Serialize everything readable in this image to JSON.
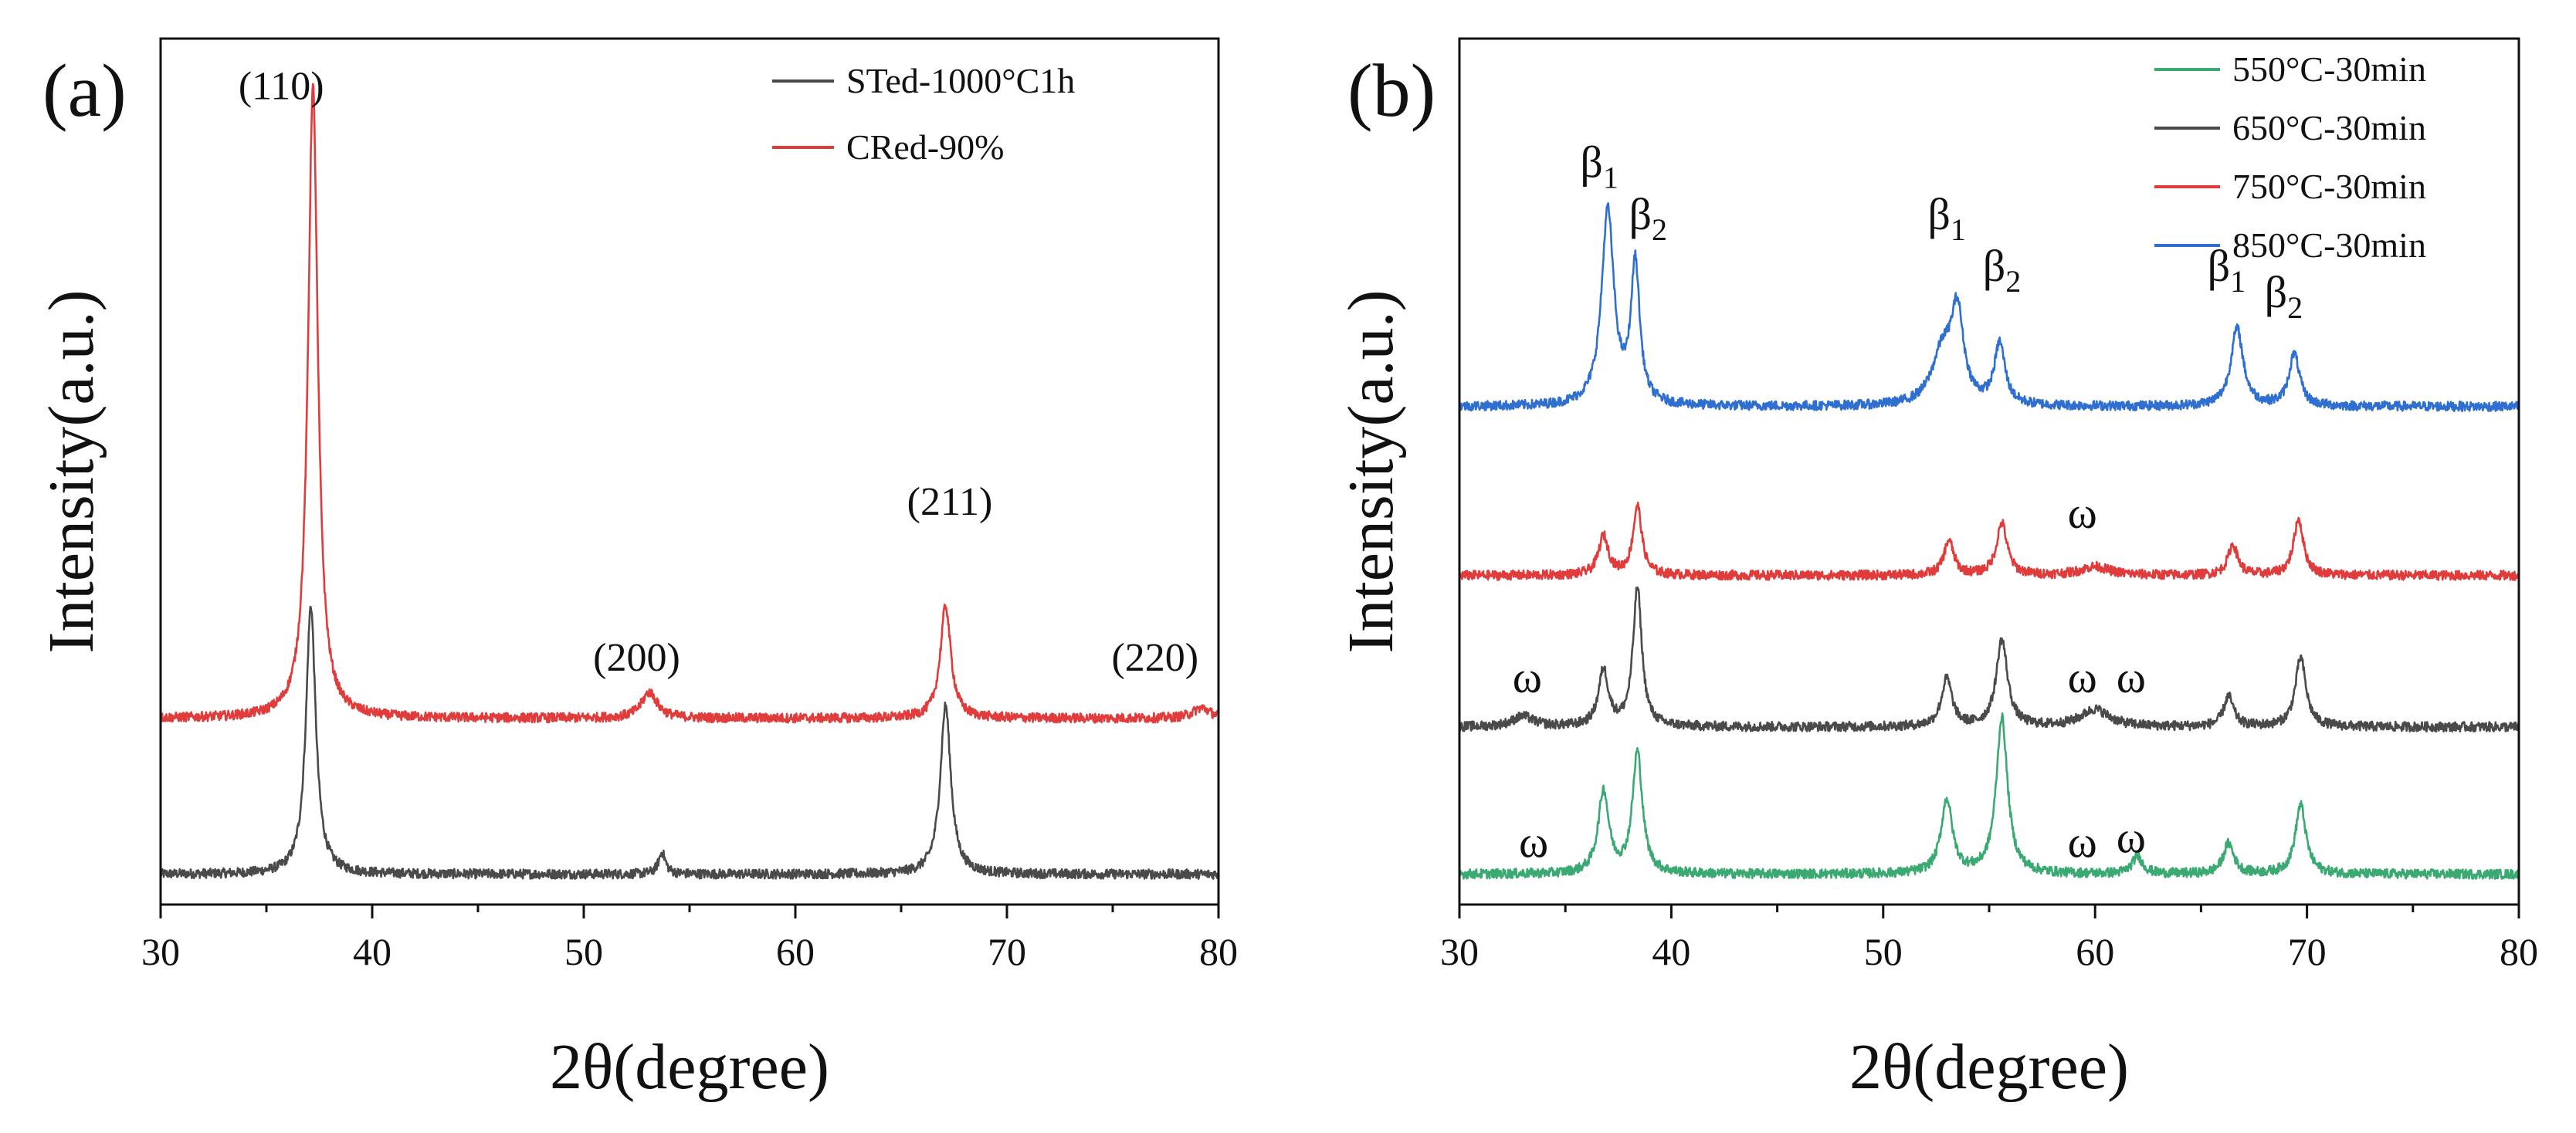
{
  "chart_data": [
    {
      "type": "line",
      "panel": "(a)",
      "xlabel": "2θ(degree)",
      "ylabel": "Intensity(a.u.)",
      "xlim": [
        30,
        80
      ],
      "xticks": [
        30,
        40,
        50,
        60,
        70,
        80
      ],
      "ylim": [
        0,
        1
      ],
      "legend": "top-right",
      "series": [
        {
          "name": "STed-1000°C1h",
          "color": "#4a4a4a",
          "baseline": 0.035,
          "peaks": [
            {
              "x": 37.1,
              "h": 0.31,
              "w": 0.28
            },
            {
              "x": 53.7,
              "h": 0.025,
              "w": 0.2
            },
            {
              "x": 67.1,
              "h": 0.195,
              "w": 0.3
            }
          ]
        },
        {
          "name": "CRed-90%",
          "color": "#e03c3c",
          "baseline": 0.215,
          "peaks": [
            {
              "x": 37.2,
              "h": 0.73,
              "w": 0.28
            },
            {
              "x": 53.1,
              "h": 0.03,
              "w": 0.45
            },
            {
              "x": 67.1,
              "h": 0.13,
              "w": 0.3
            },
            {
              "x": 79.2,
              "h": 0.012,
              "w": 0.5
            }
          ]
        }
      ],
      "annotations": [
        {
          "text": "(110)",
          "x": 35.7,
          "y": 0.93
        },
        {
          "text": "(200)",
          "x": 52.5,
          "y": 0.27
        },
        {
          "text": "(211)",
          "x": 67.3,
          "y": 0.45
        },
        {
          "text": "(220)",
          "x": 77.0,
          "y": 0.27
        }
      ]
    },
    {
      "type": "line",
      "panel": "(b)",
      "xlabel": "2θ(degree)",
      "ylabel": "Intensity(a.u.)",
      "xlim": [
        30,
        80
      ],
      "xticks": [
        30,
        40,
        50,
        60,
        70,
        80
      ],
      "ylim": [
        0,
        1
      ],
      "legend": "top-right",
      "series": [
        {
          "name": "550°C-30min",
          "color": "#3aaa72",
          "baseline": 0.035,
          "peaks": [
            {
              "x": 36.8,
              "h": 0.095,
              "w": 0.3
            },
            {
              "x": 38.4,
              "h": 0.14,
              "w": 0.28
            },
            {
              "x": 53.0,
              "h": 0.085,
              "w": 0.32
            },
            {
              "x": 55.6,
              "h": 0.18,
              "w": 0.32
            },
            {
              "x": 62.0,
              "h": 0.02,
              "w": 0.3
            },
            {
              "x": 66.3,
              "h": 0.035,
              "w": 0.3
            },
            {
              "x": 69.7,
              "h": 0.08,
              "w": 0.3
            }
          ]
        },
        {
          "name": "650°C-30min",
          "color": "#4a4a4a",
          "baseline": 0.205,
          "peaks": [
            {
              "x": 33.0,
              "h": 0.012,
              "w": 0.6
            },
            {
              "x": 36.8,
              "h": 0.065,
              "w": 0.28
            },
            {
              "x": 38.4,
              "h": 0.16,
              "w": 0.25
            },
            {
              "x": 53.0,
              "h": 0.055,
              "w": 0.3
            },
            {
              "x": 55.6,
              "h": 0.1,
              "w": 0.32
            },
            {
              "x": 60.0,
              "h": 0.02,
              "w": 0.8
            },
            {
              "x": 66.3,
              "h": 0.035,
              "w": 0.28
            },
            {
              "x": 69.7,
              "h": 0.08,
              "w": 0.3
            }
          ]
        },
        {
          "name": "750°C-30min",
          "color": "#e03c3c",
          "baseline": 0.38,
          "peaks": [
            {
              "x": 36.8,
              "h": 0.045,
              "w": 0.28
            },
            {
              "x": 38.4,
              "h": 0.08,
              "w": 0.25
            },
            {
              "x": 53.1,
              "h": 0.04,
              "w": 0.28
            },
            {
              "x": 55.6,
              "h": 0.06,
              "w": 0.3
            },
            {
              "x": 60.0,
              "h": 0.01,
              "w": 0.8
            },
            {
              "x": 66.5,
              "h": 0.035,
              "w": 0.28
            },
            {
              "x": 69.6,
              "h": 0.065,
              "w": 0.28
            }
          ]
        },
        {
          "name": "850°C-30min",
          "color": "#2f6fd0",
          "baseline": 0.575,
          "peaks": [
            {
              "x": 37.0,
              "h": 0.225,
              "w": 0.35
            },
            {
              "x": 38.3,
              "h": 0.16,
              "w": 0.25
            },
            {
              "x": 52.8,
              "h": 0.06,
              "w": 0.6
            },
            {
              "x": 53.5,
              "h": 0.1,
              "w": 0.35
            },
            {
              "x": 55.5,
              "h": 0.07,
              "w": 0.3
            },
            {
              "x": 66.7,
              "h": 0.09,
              "w": 0.35
            },
            {
              "x": 69.4,
              "h": 0.06,
              "w": 0.3
            }
          ]
        }
      ],
      "annotations": [
        {
          "text": "β",
          "sub": "1",
          "x": 36.6,
          "y": 0.84
        },
        {
          "text": "β",
          "sub": "2",
          "x": 38.9,
          "y": 0.78
        },
        {
          "text": "β",
          "sub": "1",
          "x": 53.0,
          "y": 0.78
        },
        {
          "text": "β",
          "sub": "2",
          "x": 55.6,
          "y": 0.72
        },
        {
          "text": "β",
          "sub": "1",
          "x": 66.2,
          "y": 0.72
        },
        {
          "text": "β",
          "sub": "2",
          "x": 68.9,
          "y": 0.69
        },
        {
          "text": "ω",
          "x": 59.4,
          "y": 0.435
        },
        {
          "text": "ω",
          "x": 33.2,
          "y": 0.245
        },
        {
          "text": "ω",
          "x": 59.4,
          "y": 0.245
        },
        {
          "text": "ω",
          "x": 61.7,
          "y": 0.245
        },
        {
          "text": "ω",
          "x": 33.5,
          "y": 0.055
        },
        {
          "text": "ω",
          "x": 59.4,
          "y": 0.055
        },
        {
          "text": "ω",
          "x": 61.7,
          "y": 0.06
        }
      ]
    }
  ]
}
